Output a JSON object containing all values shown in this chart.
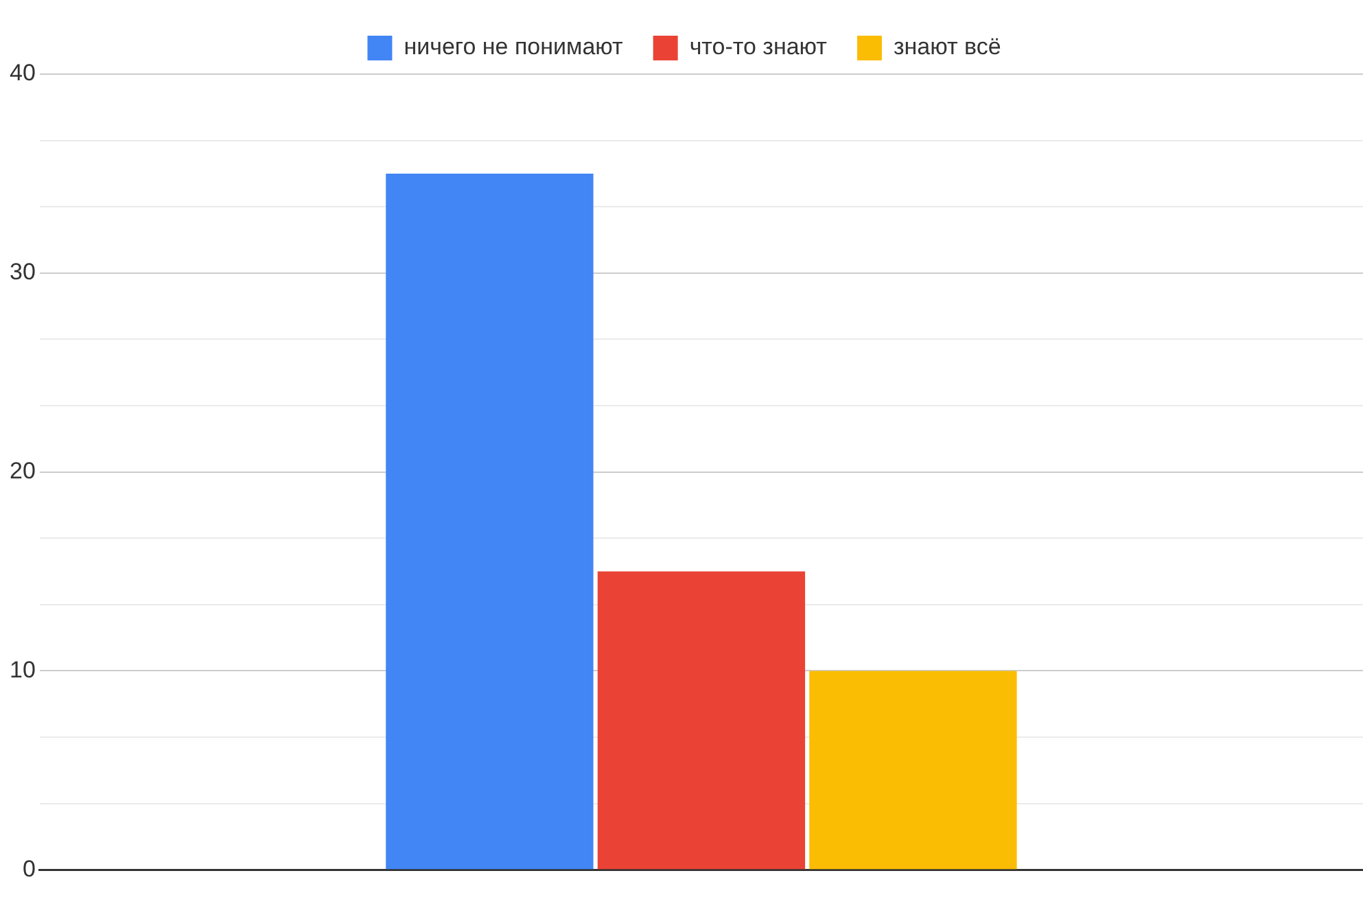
{
  "chart_data": {
    "type": "bar",
    "categories": [
      null
    ],
    "series": [
      {
        "name": "ничего не понимают",
        "color": "#4285f4",
        "values": [
          35
        ]
      },
      {
        "name": "что-то знают",
        "color": "#ea4335",
        "values": [
          15
        ]
      },
      {
        "name": "знают всё",
        "color": "#fbbc04",
        "values": [
          10
        ]
      }
    ],
    "ylim": [
      0,
      40
    ],
    "yticks": [
      0,
      {
        "value": 3.33,
        "label": null
      },
      {
        "value": 6.67,
        "label": null
      },
      10,
      {
        "value": 13.33,
        "label": null
      },
      {
        "value": 16.67,
        "label": null
      },
      20,
      {
        "value": 23.33,
        "label": null
      },
      {
        "value": 26.67,
        "label": null
      },
      30,
      {
        "value": 33.33,
        "label": null
      },
      {
        "value": 36.67,
        "label": null
      },
      40
    ],
    "grid": "y",
    "legend": "top"
  }
}
